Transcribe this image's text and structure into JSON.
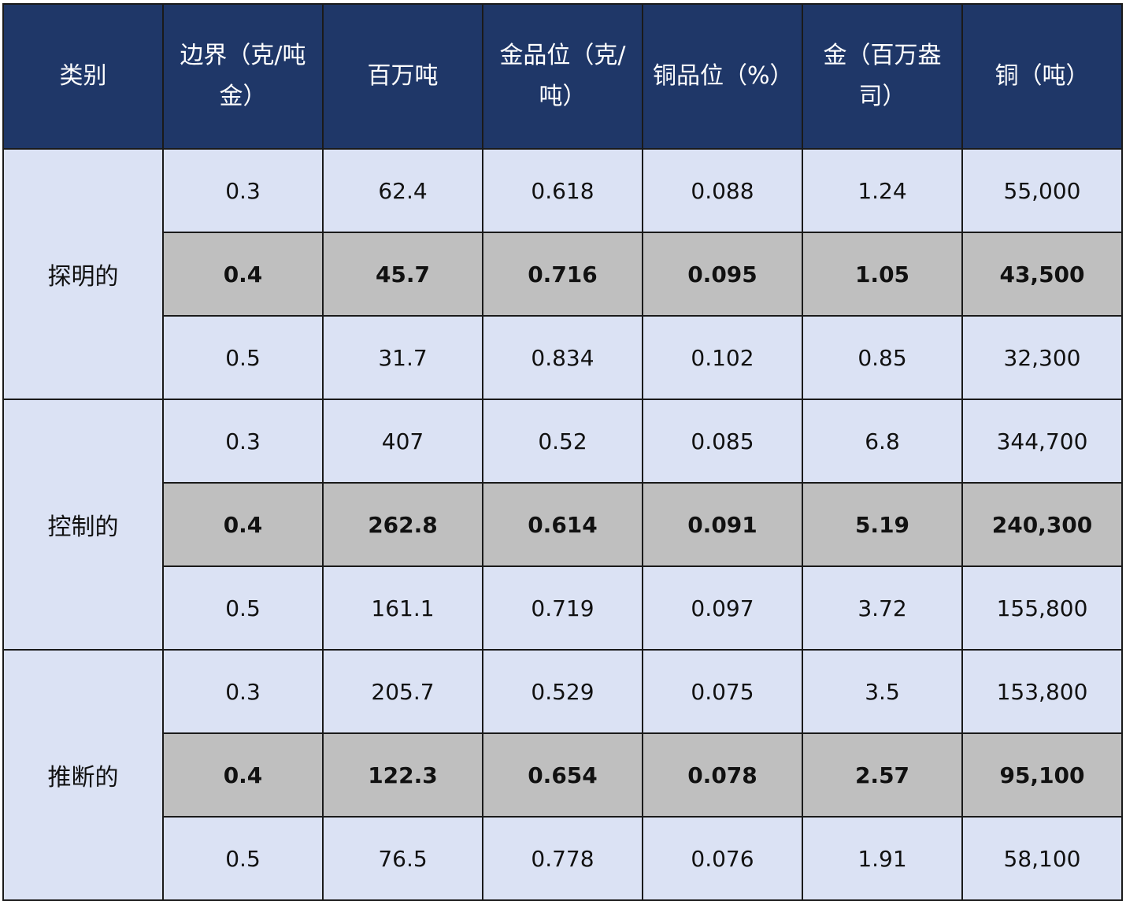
{
  "colors": {
    "header_bg": "#1f3768",
    "header_text": "#ffffff",
    "row_bg": "#dbe2f4",
    "base_row_bg": "#bfbfbf",
    "border": "#1a1a1a"
  },
  "headers": [
    "类别",
    "边界（克/吨金）",
    "百万吨",
    "金品位（克/吨）",
    "铜品位（%）",
    "金（百万盎司）",
    "铜（吨）"
  ],
  "groups": [
    {
      "category": "探明的",
      "rows": [
        [
          "0.3",
          "62.4",
          "0.618",
          "0.088",
          "1.24",
          "55,000"
        ],
        [
          "0.4",
          "45.7",
          "0.716",
          "0.095",
          "1.05",
          "43,500"
        ],
        [
          "0.5",
          "31.7",
          "0.834",
          "0.102",
          "0.85",
          "32,300"
        ]
      ]
    },
    {
      "category": "控制的",
      "rows": [
        [
          "0.3",
          "407",
          "0.52",
          "0.085",
          "6.8",
          "344,700"
        ],
        [
          "0.4",
          "262.8",
          "0.614",
          "0.091",
          "5.19",
          "240,300"
        ],
        [
          "0.5",
          "161.1",
          "0.719",
          "0.097",
          "3.72",
          "155,800"
        ]
      ]
    },
    {
      "category": "推断的",
      "rows": [
        [
          "0.3",
          "205.7",
          "0.529",
          "0.075",
          "3.5",
          "153,800"
        ],
        [
          "0.4",
          "122.3",
          "0.654",
          "0.078",
          "2.57",
          "95,100"
        ],
        [
          "0.5",
          "76.5",
          "0.778",
          "0.076",
          "1.91",
          "58,100"
        ]
      ]
    }
  ]
}
